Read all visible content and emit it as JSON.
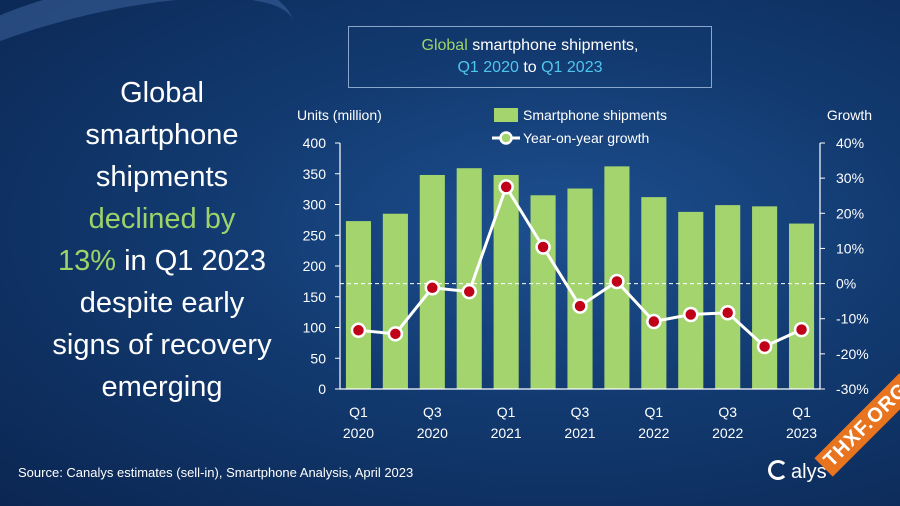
{
  "headline": {
    "line1": "Global",
    "line2": "smartphone",
    "line3": "shipments",
    "line4_green": "declined by",
    "line5_green": "13%",
    "line5_rest": " in Q1 2023",
    "line6": "despite early",
    "line7": "signs of recovery",
    "line8": "emerging"
  },
  "title_box": {
    "part1_green": "Global",
    "part1_rest": " smartphone shipments,",
    "part2_cyan_a": "Q1 2020",
    "part2_mid": " to ",
    "part2_cyan_b": "Q1 2023"
  },
  "source": "Source: Canalys estimates (sell-in), Smartphone Analysis, April 2023",
  "logo_text": "alys",
  "badge_text": "THXF.ORG",
  "colors": {
    "bar": "#a3d46e",
    "line": "#ffffff",
    "marker": "#c00018",
    "green_text": "#9ed36a",
    "cyan_text": "#4fc6ee"
  },
  "chart_data": {
    "type": "bar",
    "categories": [
      "Q1 2020",
      "Q2 2020",
      "Q3 2020",
      "Q4 2020",
      "Q1 2021",
      "Q2 2021",
      "Q3 2021",
      "Q4 2021",
      "Q1 2022",
      "Q2 2022",
      "Q3 2022",
      "Q4 2022",
      "Q1 2023"
    ],
    "x_tick_labels": [
      {
        "index": 0,
        "line1": "Q1",
        "line2": "2020"
      },
      {
        "index": 2,
        "line1": "Q3",
        "line2": "2020"
      },
      {
        "index": 4,
        "line1": "Q1",
        "line2": "2021"
      },
      {
        "index": 6,
        "line1": "Q3",
        "line2": "2021"
      },
      {
        "index": 8,
        "line1": "Q1",
        "line2": "2022"
      },
      {
        "index": 10,
        "line1": "Q3",
        "line2": "2022"
      },
      {
        "index": 12,
        "line1": "Q1",
        "line2": "2023"
      }
    ],
    "series": [
      {
        "name": "Smartphone shipments",
        "type": "bar",
        "axis": "left",
        "values": [
          273,
          285,
          348,
          359,
          348,
          315,
          326,
          362,
          312,
          288,
          299,
          297,
          269
        ]
      },
      {
        "name": "Year-on-year growth",
        "type": "line",
        "axis": "right",
        "values": [
          -13.3,
          -14.3,
          -1.2,
          -2.3,
          27.5,
          10.4,
          -6.4,
          0.6,
          -10.8,
          -8.8,
          -8.3,
          -17.9,
          -13.1
        ]
      }
    ],
    "ylabel_left": "Units (million)",
    "ylabel_right": "Growth",
    "ylim_left": [
      0,
      400
    ],
    "yticks_left": [
      0,
      50,
      100,
      150,
      200,
      250,
      300,
      350,
      400
    ],
    "ylim_right": [
      -30,
      40
    ],
    "yticks_right": [
      "-30%",
      "-20%",
      "-10%",
      "0%",
      "10%",
      "20%",
      "30%",
      "40%"
    ],
    "zero_growth_reference": "dashed",
    "legend_position": "top-center",
    "grid": false
  }
}
